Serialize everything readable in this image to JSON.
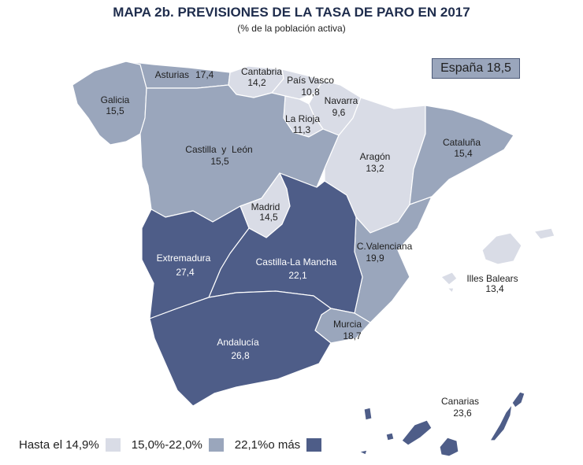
{
  "title": "MAPA 2b. PREVISIONES DE LA TASA DE PARO EN 2017",
  "subtitle": "(% de la población activa)",
  "national": "España 18,5",
  "colors": {
    "low": "#d9dce6",
    "mid": "#9aa6bc",
    "high": "#4e5d88"
  },
  "legend": [
    {
      "label": "Hasta el 14,9%",
      "color": "#d9dce6"
    },
    {
      "label": "15,0%-22,0%",
      "color": "#9aa6bc"
    },
    {
      "label": "22,1%o más",
      "color": "#4e5d88"
    }
  ],
  "regions": [
    {
      "name": "Asturias",
      "value": "17,4",
      "category": "mid"
    },
    {
      "name": "Cantabria",
      "value": "14,2",
      "category": "low"
    },
    {
      "name": "País Vasco",
      "value": "10,8",
      "category": "low"
    },
    {
      "name": "Navarra",
      "value": "9,6",
      "category": "low"
    },
    {
      "name": "Galicia",
      "value": "15,5",
      "category": "mid"
    },
    {
      "name": "La Rioja",
      "value": "11,3",
      "category": "low"
    },
    {
      "name": "Castilla  y  León",
      "value": "15,5",
      "category": "mid"
    },
    {
      "name": "Aragón",
      "value": "13,2",
      "category": "low"
    },
    {
      "name": "Cataluña",
      "value": "15,4",
      "category": "mid"
    },
    {
      "name": "Madrid",
      "value": "14,5",
      "category": "low"
    },
    {
      "name": "C.Valenciana",
      "value": "19,9",
      "category": "mid"
    },
    {
      "name": "Extremadura",
      "value": "27,4",
      "category": "high"
    },
    {
      "name": "Castilla-La Mancha",
      "value": "22,1",
      "category": "high"
    },
    {
      "name": "Illes Balears",
      "value": "13,4",
      "category": "low"
    },
    {
      "name": "Murcia",
      "value": "18,7",
      "category": "mid"
    },
    {
      "name": "Andalucía",
      "value": "26,8",
      "category": "high"
    },
    {
      "name": "Canarias",
      "value": "23,6",
      "category": "high"
    }
  ]
}
